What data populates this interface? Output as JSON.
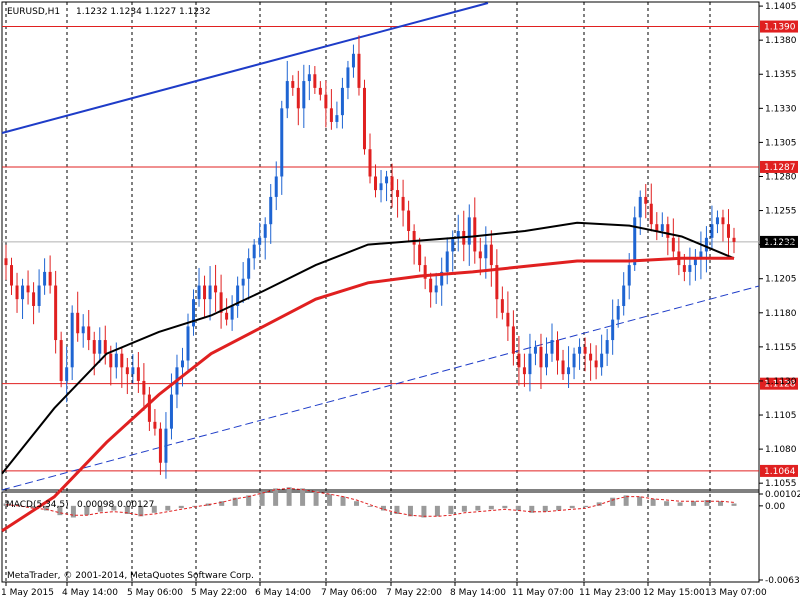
{
  "header": {
    "symbol": "EURUSD,H1",
    "ohlc": "1.1232 1.1234 1.1227 1.1232"
  },
  "macd_header": {
    "label": "MACD(5,34,5)",
    "values": "0.00098 0.00127"
  },
  "copyright": "MetaTrader, © 2001-2014, MetaQuotes Software Corp.",
  "colors": {
    "background": "#ffffff",
    "bull": "#1e64d2",
    "bear": "#e02020",
    "grid": "#000000",
    "level_line": "#e02020",
    "ma_fast": "#000000",
    "ma_slow": "#e02020",
    "trend_line": "#1e3cc8",
    "macd_hist": "#9a9a9a",
    "macd_signal": "#e02020"
  },
  "chart_data": [
    {
      "type": "candlestick",
      "title": "EURUSD,H1",
      "ylim": [
        1.105,
        1.1408
      ],
      "y_ticks": [
        "1.1405",
        "1.1380",
        "1.1355",
        "1.1330",
        "1.1305",
        "1.1280",
        "1.1255",
        "1.1230",
        "1.1205",
        "1.1180",
        "1.1155",
        "1.1130",
        "1.1105",
        "1.1080",
        "1.1055"
      ],
      "x_labels": [
        "1 May 2015",
        "4 May 14:00",
        "5 May 06:00",
        "5 May 22:00",
        "6 May 14:00",
        "7 May 06:00",
        "7 May 22:00",
        "8 May 14:00",
        "11 May 07:00",
        "11 May 23:00",
        "12 May 15:00",
        "13 May 07:00"
      ],
      "grid": "vertical dashed",
      "horizontal_levels": [
        {
          "label": "1.1390",
          "value": 1.139
        },
        {
          "label": "1.1287",
          "value": 1.1287
        },
        {
          "label": "1.1128",
          "value": 1.1128
        },
        {
          "label": "1.1064",
          "value": 1.1064
        }
      ],
      "current_price": {
        "label": "1.1232",
        "value": 1.1232
      },
      "price_path_close": [
        1.1215,
        1.12,
        1.119,
        1.12,
        1.1195,
        1.1185,
        1.12,
        1.121,
        1.12,
        1.116,
        1.113,
        1.114,
        1.118,
        1.1165,
        1.117,
        1.116,
        1.115,
        1.116,
        1.115,
        1.114,
        1.115,
        1.114,
        1.1135,
        1.114,
        1.113,
        1.112,
        1.11,
        1.1095,
        1.107,
        1.1095,
        1.112,
        1.114,
        1.1145,
        1.117,
        1.119,
        1.12,
        1.119,
        1.12,
        1.1195,
        1.118,
        1.1175,
        1.1185,
        1.12,
        1.1205,
        1.122,
        1.123,
        1.1235,
        1.1245,
        1.1265,
        1.128,
        1.133,
        1.135,
        1.1345,
        1.133,
        1.135,
        1.1355,
        1.1345,
        1.134,
        1.133,
        1.132,
        1.1325,
        1.1345,
        1.136,
        1.137,
        1.1345,
        1.13,
        1.128,
        1.127,
        1.1275,
        1.128,
        1.127,
        1.1265,
        1.1255,
        1.124,
        1.123,
        1.1215,
        1.1205,
        1.1195,
        1.12,
        1.121,
        1.1225,
        1.1235,
        1.124,
        1.123,
        1.125,
        1.1225,
        1.122,
        1.123,
        1.1215,
        1.119,
        1.118,
        1.117,
        1.115,
        1.114,
        1.1135,
        1.115,
        1.1155,
        1.114,
        1.115,
        1.116,
        1.1145,
        1.1135,
        1.114,
        1.115,
        1.1155,
        1.115,
        1.1145,
        1.114,
        1.115,
        1.116,
        1.1175,
        1.1185,
        1.12,
        1.1215,
        1.125,
        1.1265,
        1.126,
        1.1245,
        1.124,
        1.1245,
        1.1235,
        1.1225,
        1.1215,
        1.121,
        1.1215,
        1.122,
        1.1225,
        1.1235,
        1.1245,
        1.125,
        1.1245,
        1.1235,
        1.1232
      ],
      "moving_averages": [
        {
          "color": "#000000",
          "values": [
            1.1062,
            1.111,
            1.115,
            1.1166,
            1.1178,
            1.1196,
            1.1215,
            1.123,
            1.1233,
            1.1236,
            1.124,
            1.1246,
            1.1244,
            1.1236,
            1.122
          ]
        },
        {
          "color": "#e02020",
          "values": [
            1.102,
            1.1045,
            1.1085,
            1.112,
            1.115,
            1.117,
            1.119,
            1.1202,
            1.1207,
            1.121,
            1.1214,
            1.1218,
            1.1218,
            1.122,
            1.122
          ]
        }
      ]
    },
    {
      "type": "histogram",
      "title": "MACD(5,34,5)",
      "ylim": [
        -0.00638,
        0.00102
      ],
      "y_ticks": [
        "0.00102",
        "0.00",
        "-0.00638"
      ],
      "histogram": [
        0.0002,
        0.0001,
        -0.0002,
        -0.0004,
        -0.0008,
        -0.001,
        -0.0008,
        -0.0005,
        -0.0004,
        -0.0007,
        -0.0009,
        -0.0006,
        -0.0004,
        -0.0002,
        0.0,
        0.0002,
        0.0004,
        0.0007,
        0.0009,
        0.0012,
        0.0015,
        0.0016,
        0.0015,
        0.0012,
        0.001,
        0.0008,
        0.0004,
        0.0,
        -0.0004,
        -0.0007,
        -0.0009,
        -0.001,
        -0.0009,
        -0.0007,
        -0.0005,
        -0.0004,
        -0.0003,
        -0.0002,
        -0.0004,
        -0.0006,
        -0.0005,
        -0.0004,
        -0.0002,
        -0.0001,
        0.0003,
        0.0007,
        0.0009,
        0.0008,
        0.0006,
        0.0004,
        0.0003,
        0.0004,
        0.0005,
        0.0004,
        0.0002
      ],
      "signal": [
        0.0001,
        0.0,
        -0.0002,
        -0.0003,
        -0.0006,
        -0.0008,
        -0.0008,
        -0.0006,
        -0.0005,
        -0.0006,
        -0.0008,
        -0.0007,
        -0.0005,
        -0.0003,
        -0.0001,
        0.0001,
        0.0003,
        0.0006,
        0.0008,
        0.0011,
        0.0014,
        0.0015,
        0.0014,
        0.0012,
        0.001,
        0.0008,
        0.0005,
        0.0001,
        -0.0003,
        -0.0006,
        -0.0008,
        -0.0009,
        -0.0009,
        -0.0008,
        -0.0006,
        -0.0005,
        -0.0004,
        -0.0003,
        -0.0004,
        -0.0005,
        -0.0005,
        -0.0004,
        -0.0003,
        -0.0002,
        0.0001,
        0.0005,
        0.0008,
        0.0008,
        0.0006,
        0.0005,
        0.0004,
        0.0004,
        0.0004,
        0.0004,
        0.0003
      ]
    }
  ]
}
